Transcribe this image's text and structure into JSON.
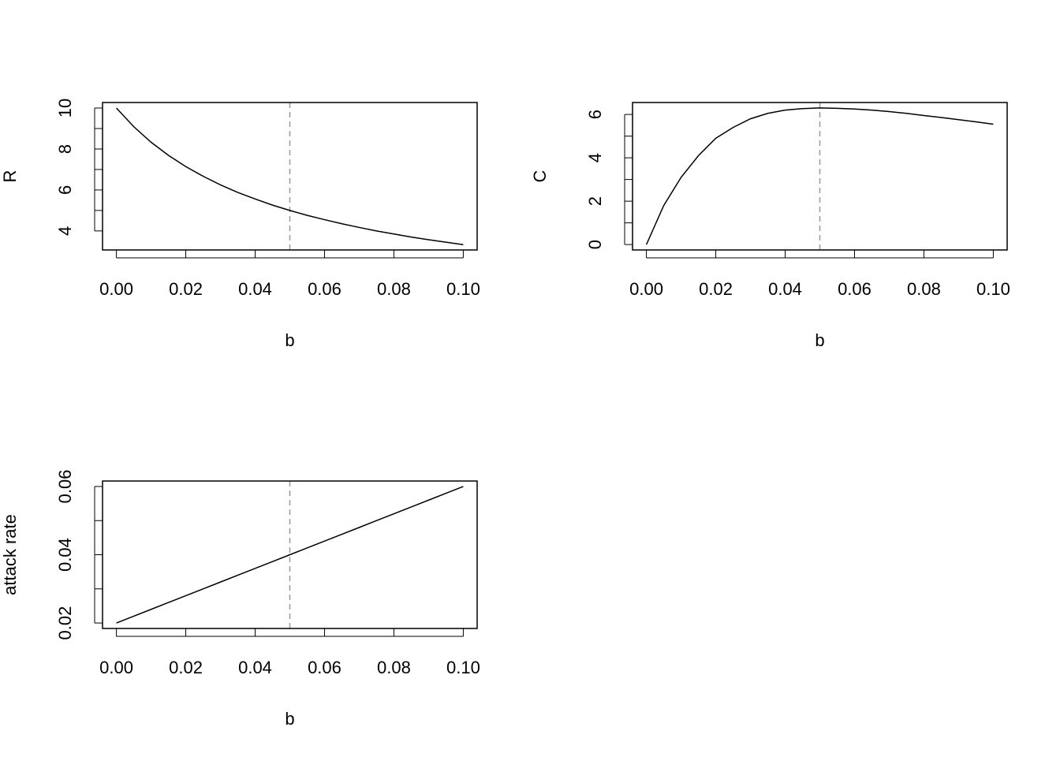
{
  "chart_data": [
    {
      "type": "line",
      "xlabel": "b",
      "ylabel": "R",
      "x": [
        0,
        0.005,
        0.01,
        0.015,
        0.02,
        0.025,
        0.03,
        0.035,
        0.04,
        0.045,
        0.05,
        0.055,
        0.06,
        0.065,
        0.07,
        0.075,
        0.08,
        0.085,
        0.09,
        0.095,
        0.1
      ],
      "values": [
        10,
        9.09,
        8.33,
        7.69,
        7.14,
        6.67,
        6.25,
        5.88,
        5.56,
        5.26,
        5,
        4.76,
        4.55,
        4.35,
        4.17,
        4,
        3.85,
        3.7,
        3.57,
        3.45,
        3.33
      ],
      "color": "#000000",
      "xlim": [
        -0.004,
        0.104
      ],
      "ylim": [
        3.07,
        10.27
      ],
      "xticks": [
        {
          "value": 0,
          "label": "0.00"
        },
        0.02,
        0.04,
        0.06,
        0.08,
        {
          "value": 0.1,
          "label": "0.10"
        }
      ],
      "yticks": [
        4,
        6,
        8,
        10
      ],
      "yminor": [
        5,
        7,
        9
      ],
      "vline": 0.05,
      "vline_color": "#999999"
    },
    {
      "type": "line",
      "xlabel": "b",
      "ylabel": "C",
      "x": [
        0,
        0.005,
        0.01,
        0.015,
        0.02,
        0.025,
        0.03,
        0.035,
        0.04,
        0.045,
        0.05,
        0.055,
        0.06,
        0.065,
        0.07,
        0.075,
        0.08,
        0.085,
        0.09,
        0.095,
        0.1
      ],
      "values": [
        0,
        1.8,
        3.1,
        4.1,
        4.9,
        5.4,
        5.8,
        6.05,
        6.2,
        6.27,
        6.3,
        6.28,
        6.25,
        6.2,
        6.13,
        6.05,
        5.95,
        5.86,
        5.76,
        5.66,
        5.55
      ],
      "color": "#000000",
      "xlim": [
        -0.004,
        0.104
      ],
      "ylim": [
        -0.25,
        6.55
      ],
      "xticks": [
        {
          "value": 0,
          "label": "0.00"
        },
        0.02,
        0.04,
        0.06,
        0.08,
        {
          "value": 0.1,
          "label": "0.10"
        }
      ],
      "yticks": [
        0,
        2,
        4,
        6
      ],
      "yminor": [
        1,
        3,
        5
      ],
      "vline": 0.05,
      "vline_color": "#999999"
    },
    {
      "type": "line",
      "xlabel": "b",
      "ylabel": "attack rate",
      "x": [
        0,
        0.005,
        0.01,
        0.015,
        0.02,
        0.025,
        0.03,
        0.035,
        0.04,
        0.045,
        0.05,
        0.055,
        0.06,
        0.065,
        0.07,
        0.075,
        0.08,
        0.085,
        0.09,
        0.095,
        0.1
      ],
      "values": [
        0.02,
        0.022,
        0.024,
        0.026,
        0.028,
        0.03,
        0.032,
        0.034,
        0.036,
        0.038,
        0.04,
        0.042,
        0.044,
        0.046,
        0.048,
        0.05,
        0.052,
        0.054,
        0.056,
        0.058,
        0.06
      ],
      "color": "#000000",
      "xlim": [
        -0.004,
        0.104
      ],
      "ylim": [
        0.0184,
        0.0616
      ],
      "xticks": [
        {
          "value": 0,
          "label": "0.00"
        },
        0.02,
        0.04,
        0.06,
        0.08,
        {
          "value": 0.1,
          "label": "0.10"
        }
      ],
      "yticks": [
        0.02,
        0.04,
        0.06
      ],
      "yminor": [
        0.03,
        0.05
      ],
      "vline": 0.05,
      "vline_color": "#999999"
    }
  ]
}
